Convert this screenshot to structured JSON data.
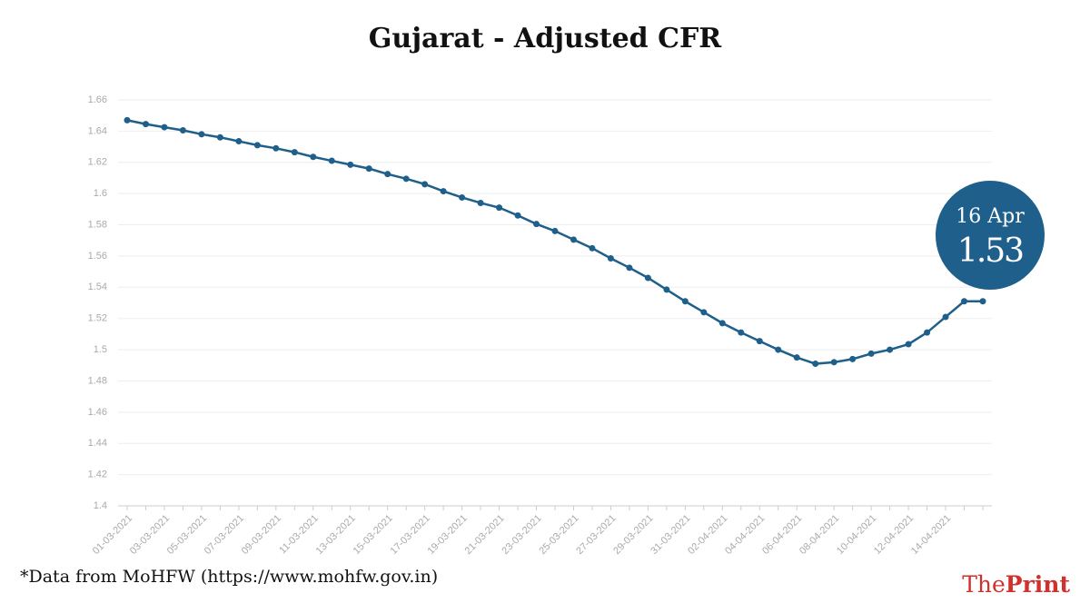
{
  "chart_data": {
    "type": "line",
    "title": "Gujarat - Adjusted CFR",
    "categories": [
      "01-03-2021",
      null,
      "03-03-2021",
      null,
      "05-03-2021",
      null,
      "07-03-2021",
      null,
      "09-03-2021",
      null,
      "11-03-2021",
      null,
      "13-03-2021",
      null,
      "15-03-2021",
      null,
      "17-03-2021",
      null,
      "19-03-2021",
      null,
      "21-03-2021",
      null,
      "23-03-2021",
      null,
      "25-03-2021",
      null,
      "27-03-2021",
      null,
      "29-03-2021",
      null,
      "31-03-2021",
      null,
      "02-04-2021",
      null,
      "04-04-2021",
      null,
      "06-04-2021",
      null,
      "08-04-2021",
      null,
      "10-04-2021",
      null,
      "12-04-2021",
      null,
      "14-04-2021",
      null,
      null
    ],
    "series": [
      {
        "name": "Adjusted CFR",
        "color": "#1f5f8b",
        "values": [
          1.647,
          1.6445,
          1.6425,
          1.6405,
          1.638,
          1.636,
          1.6335,
          1.631,
          1.629,
          1.6265,
          1.6235,
          1.621,
          1.6185,
          1.616,
          1.6125,
          1.6095,
          1.606,
          1.6015,
          1.5975,
          1.594,
          1.591,
          1.586,
          1.5805,
          1.576,
          1.5705,
          1.565,
          1.5585,
          1.5525,
          1.546,
          1.5385,
          1.531,
          1.524,
          1.517,
          1.511,
          1.5055,
          1.5,
          1.495,
          1.491,
          1.492,
          1.494,
          1.4975,
          1.5,
          1.5035,
          1.511,
          1.521,
          1.531,
          1.531
        ]
      }
    ],
    "ylim": [
      1.4,
      1.66
    ],
    "yticks": [
      1.4,
      1.42,
      1.44,
      1.46,
      1.48,
      1.5,
      1.52,
      1.54,
      1.56,
      1.58,
      1.6,
      1.62,
      1.64,
      1.66
    ],
    "grid": true,
    "annotation": {
      "date": "16 Apr",
      "value": "1.53"
    },
    "footnote": "*Data from MoHFW (https://www.mohfw.gov.in)",
    "logo": {
      "first": "The",
      "second": "Print"
    }
  }
}
